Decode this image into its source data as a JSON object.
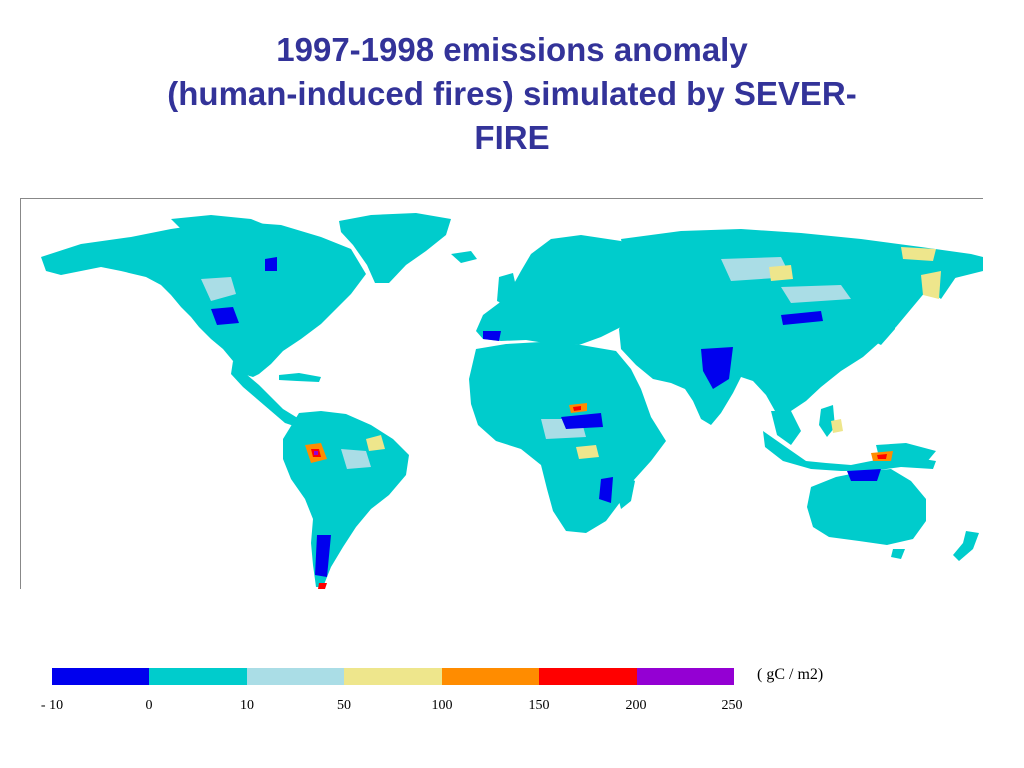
{
  "title": {
    "line1": "1997-1998 emissions anomaly",
    "line2": "(human-induced fires) simulated by SEVER-",
    "line3": "FIRE"
  },
  "map": {
    "colors": {
      "ocean": "#ffffff",
      "land_base": "#00cccc",
      "light_blue": "#aadde6",
      "negative": "#0000ee",
      "yellow": "#eee68c",
      "orange": "#ff8c00",
      "red": "#ff0000",
      "purple": "#9400d3"
    }
  },
  "legend": {
    "unit": "( gC / m2)",
    "ticks": [
      "- 10",
      "0",
      "10",
      "50",
      "100",
      "150",
      "200",
      "250"
    ],
    "colors": [
      "#0000ee",
      "#00cccc",
      "#aadde6",
      "#eee68c",
      "#ff8c00",
      "#ff0000",
      "#9400d3"
    ]
  }
}
